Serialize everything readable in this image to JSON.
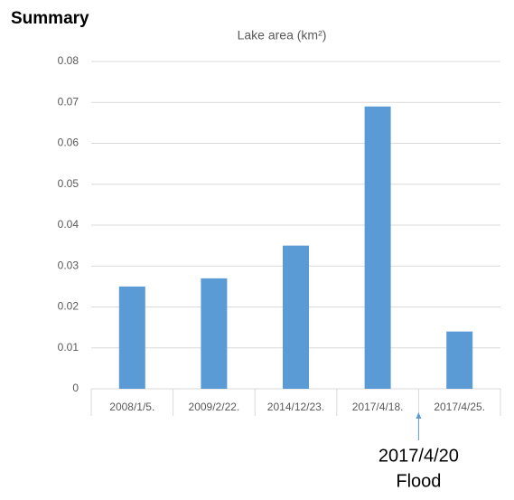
{
  "header": {
    "title": "Summary"
  },
  "chart_data": {
    "type": "bar",
    "title": "Lake area (km²)",
    "categories": [
      "2008/1/5.",
      "2009/2/22.",
      "2014/12/23.",
      "2017/4/18.",
      "2017/4/25."
    ],
    "values": [
      0.025,
      0.027,
      0.035,
      0.069,
      0.014
    ],
    "color": "#5b9bd5",
    "ylim": [
      0,
      0.08
    ],
    "yticks": [
      0,
      0.01,
      0.02,
      0.03,
      0.04,
      0.05,
      0.06,
      0.07,
      0.08
    ],
    "grid": true,
    "annotation": {
      "lines": [
        "2017/4/20",
        "Flood"
      ]
    }
  }
}
